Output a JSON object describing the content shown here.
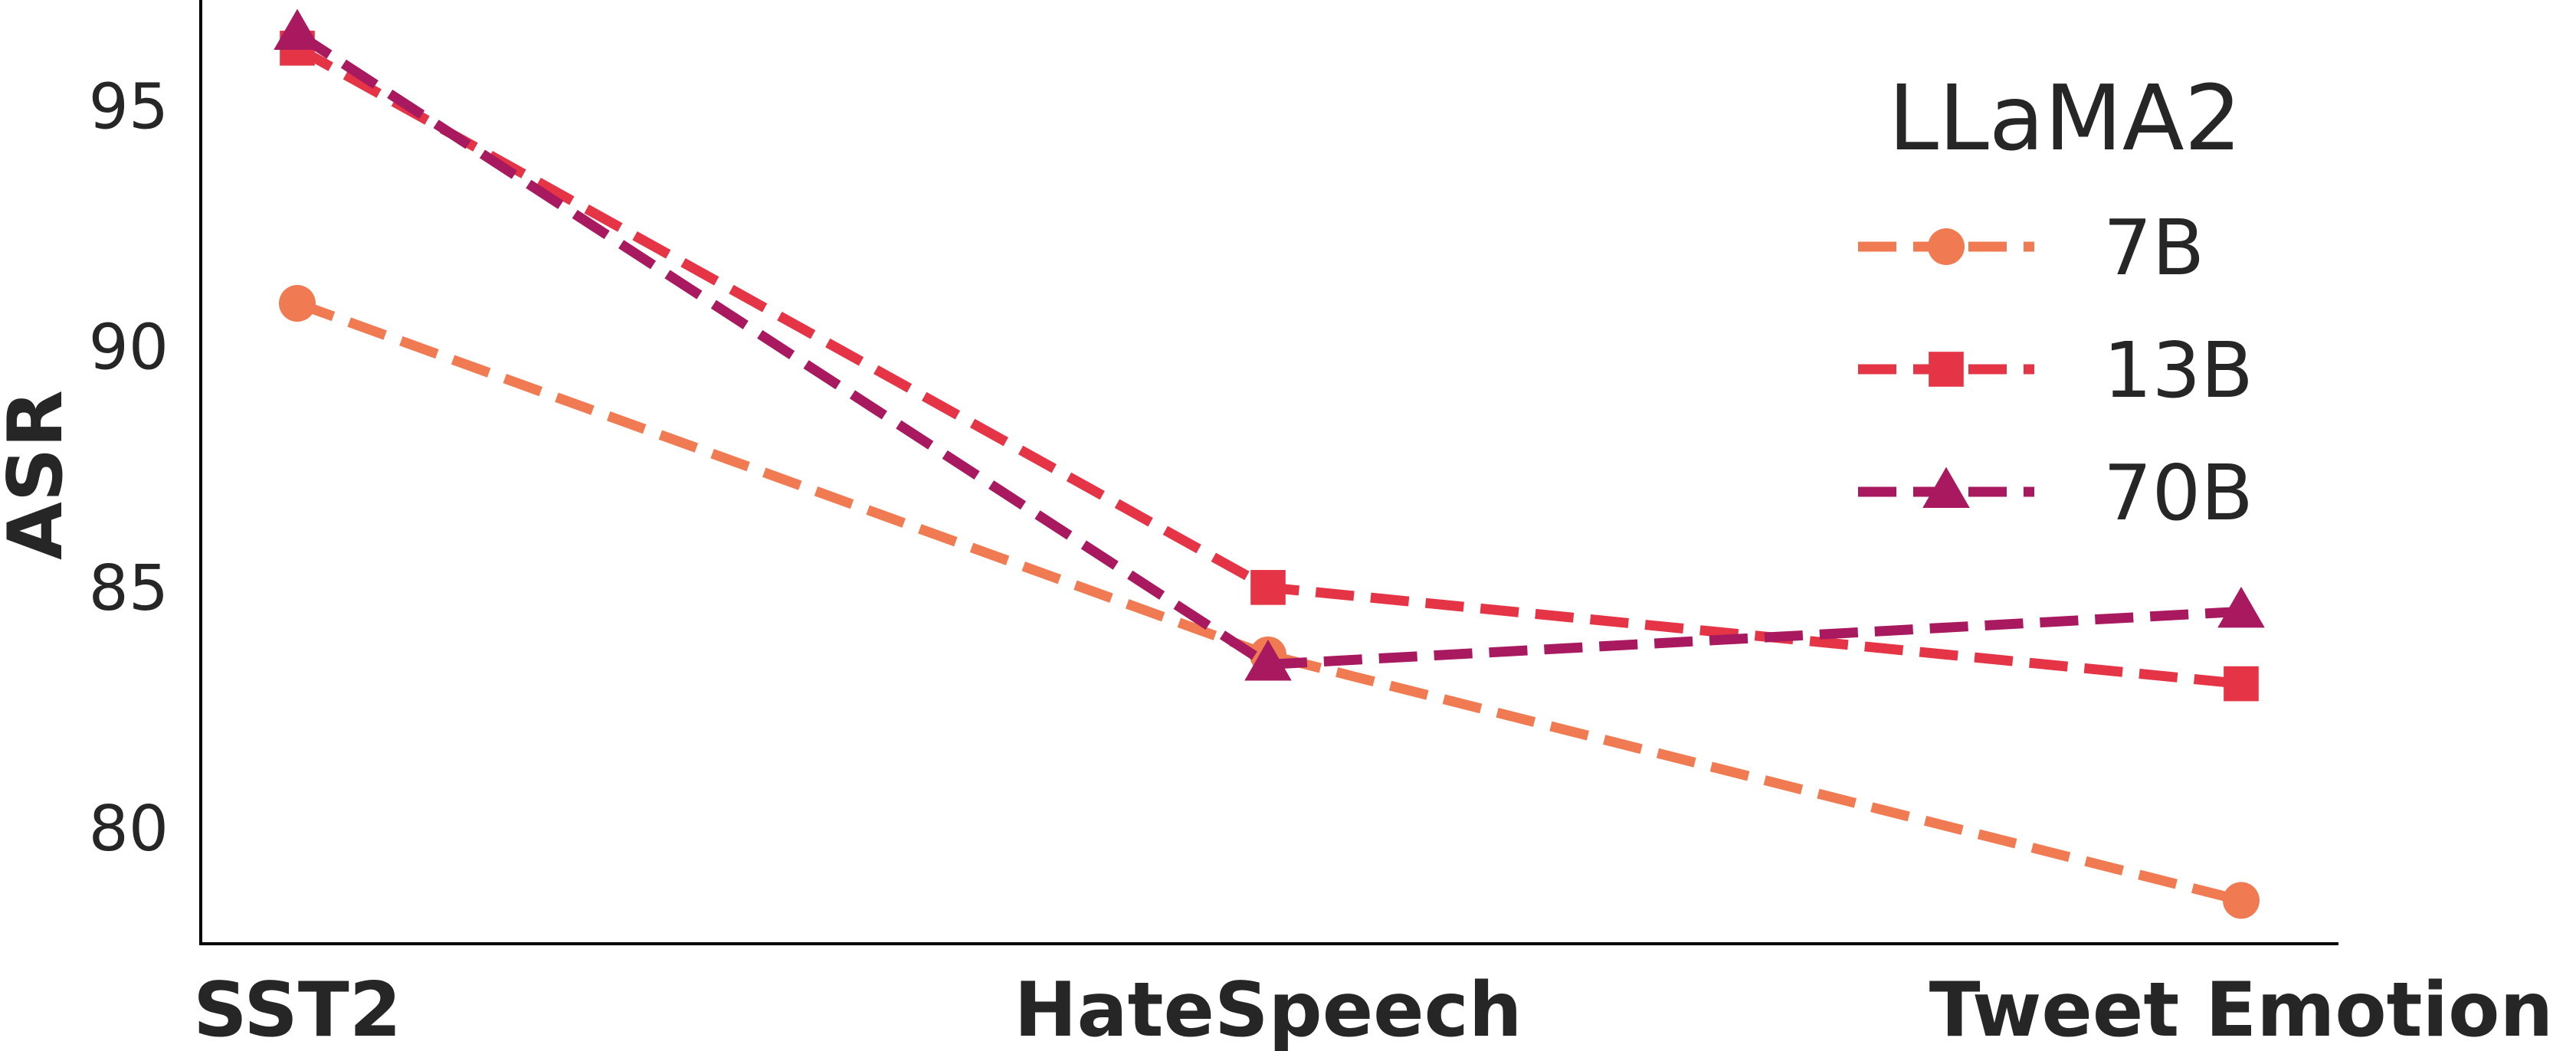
{
  "chart_data": {
    "type": "line",
    "categories": [
      "SST2",
      "HateSpeech",
      "Tweet Emotion"
    ],
    "ylabel": "ASR",
    "xlabel": "",
    "ylim": [
      77.6,
      97.2
    ],
    "yticks": [
      80,
      85,
      90,
      95
    ],
    "grid": false,
    "legend": {
      "title": "LLaMA2",
      "position": "top-right"
    },
    "series": [
      {
        "name": "7B",
        "values": [
          90.9,
          83.6,
          78.5
        ],
        "color": "#f07b52",
        "marker": "circle"
      },
      {
        "name": "13B",
        "values": [
          96.2,
          85.0,
          83.0
        ],
        "color": "#e53445",
        "marker": "square"
      },
      {
        "name": "70B",
        "values": [
          96.5,
          83.4,
          84.5
        ],
        "color": "#a8195f",
        "marker": "triangle"
      }
    ]
  }
}
